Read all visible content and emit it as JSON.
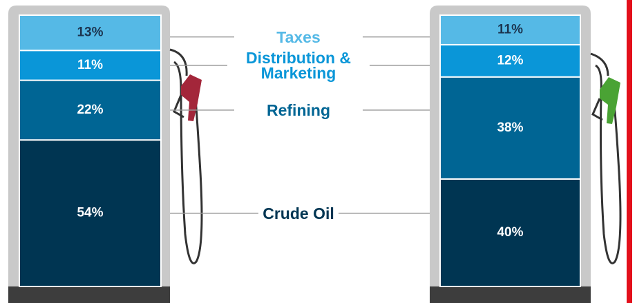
{
  "chart_data": {
    "type": "bar",
    "stacked": true,
    "categories": [
      null,
      null
    ],
    "series": [
      {
        "name": "Crude Oil",
        "color": "#003552",
        "values": [
          54,
          40
        ],
        "value_labels": [
          "54%",
          "40%"
        ]
      },
      {
        "name": "Refining",
        "color": "#006594",
        "values": [
          22,
          38
        ],
        "value_labels": [
          "22%",
          "38%"
        ]
      },
      {
        "name": "Distribution & Marketing",
        "color": "#0a96d8",
        "values": [
          11,
          12
        ],
        "value_labels": [
          "11%",
          "12%"
        ]
      },
      {
        "name": "Taxes",
        "color": "#55b9e6",
        "values": [
          13,
          11
        ],
        "value_labels": [
          "13%",
          "11%"
        ]
      }
    ]
  }
}
